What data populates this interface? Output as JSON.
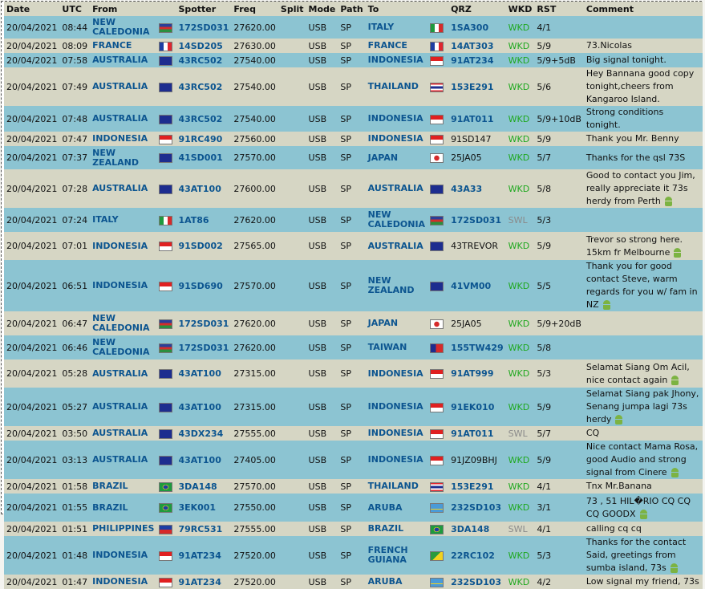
{
  "columns": [
    "Date",
    "UTC",
    "From",
    "",
    "Spotter",
    "Freq",
    "Split",
    "Mode",
    "Path",
    "To",
    "",
    "QRZ",
    "WKD",
    "RST",
    "Comment"
  ],
  "rows": [
    {
      "date": "20/04/2021",
      "utc": "08:44",
      "from": "NEW CALEDONIA",
      "from_flag": "new-caledonia-flag",
      "spotter": "172SD031",
      "freq": "27620.00",
      "split": "",
      "mode": "USB",
      "path": "SP",
      "to": "ITALY",
      "to_flag": "italy-flag",
      "qrz": "1SA300",
      "qrz_link": true,
      "wkd": "WKD",
      "rst": "4/1",
      "comment": "",
      "android": false,
      "h": 28
    },
    {
      "date": "20/04/2021",
      "utc": "08:09",
      "from": "FRANCE",
      "from_flag": "france-flag",
      "spotter": "14SD205",
      "freq": "27630.00",
      "split": "",
      "mode": "USB",
      "path": "SP",
      "to": "FRANCE",
      "to_flag": "france-flag",
      "qrz": "14AT303",
      "qrz_link": true,
      "wkd": "WKD",
      "rst": "5/9",
      "comment": "73.Nicolas",
      "android": false,
      "h": 18
    },
    {
      "date": "20/04/2021",
      "utc": "07:58",
      "from": "AUSTRALIA",
      "from_flag": "australia-flag",
      "spotter": "43RC502",
      "freq": "27540.00",
      "split": "",
      "mode": "USB",
      "path": "SP",
      "to": "INDONESIA",
      "to_flag": "indonesia-flag",
      "qrz": "91AT234",
      "qrz_link": true,
      "wkd": "WKD",
      "rst": "5/9+5dB",
      "comment": "Big signal tonight.",
      "android": false,
      "h": 18
    },
    {
      "date": "20/04/2021",
      "utc": "07:49",
      "from": "AUSTRALIA",
      "from_flag": "australia-flag",
      "spotter": "43RC502",
      "freq": "27540.00",
      "split": "",
      "mode": "USB",
      "path": "SP",
      "to": "THAILAND",
      "to_flag": "thailand-flag",
      "qrz": "153E291",
      "qrz_link": true,
      "wkd": "WKD",
      "rst": "5/6",
      "comment": "Hey Bannana good copy tonight,cheers from Kangaroo Island.",
      "android": false,
      "h": 30
    },
    {
      "date": "20/04/2021",
      "utc": "07:48",
      "from": "AUSTRALIA",
      "from_flag": "australia-flag",
      "spotter": "43RC502",
      "freq": "27540.00",
      "split": "",
      "mode": "USB",
      "path": "SP",
      "to": "INDONESIA",
      "to_flag": "indonesia-flag",
      "qrz": "91AT011",
      "qrz_link": true,
      "wkd": "WKD",
      "rst": "5/9+10dB",
      "comment": "Strong conditions tonight.",
      "android": false,
      "h": 18
    },
    {
      "date": "20/04/2021",
      "utc": "07:47",
      "from": "INDONESIA",
      "from_flag": "indonesia-flag",
      "spotter": "91RC490",
      "freq": "27560.00",
      "split": "",
      "mode": "USB",
      "path": "SP",
      "to": "INDONESIA",
      "to_flag": "indonesia-flag",
      "qrz": "91SD147",
      "qrz_link": false,
      "wkd": "WKD",
      "rst": "5/9",
      "comment": "Thank you Mr. Benny",
      "android": false,
      "h": 18
    },
    {
      "date": "20/04/2021",
      "utc": "07:37",
      "from": "NEW ZEALAND",
      "from_flag": "new-zealand-flag",
      "spotter": "41SD001",
      "freq": "27570.00",
      "split": "",
      "mode": "USB",
      "path": "SP",
      "to": "JAPAN",
      "to_flag": "japan-flag",
      "qrz": "25JA05",
      "qrz_link": false,
      "wkd": "WKD",
      "rst": "5/7",
      "comment": "Thanks for the qsl 73S",
      "android": false,
      "h": 29
    },
    {
      "date": "20/04/2021",
      "utc": "07:28",
      "from": "AUSTRALIA",
      "from_flag": "australia-flag",
      "spotter": "43AT100",
      "freq": "27600.00",
      "split": "",
      "mode": "USB",
      "path": "SP",
      "to": "AUSTRALIA",
      "to_flag": "australia-flag",
      "qrz": "43A33",
      "qrz_link": true,
      "wkd": "WKD",
      "rst": "5/8",
      "comment": "Good to contact you Jim, really appreciate it 73s herdy from Perth",
      "android": true,
      "h": 35
    },
    {
      "date": "20/04/2021",
      "utc": "07:24",
      "from": "ITALY",
      "from_flag": "italy-flag",
      "spotter": "1AT86",
      "freq": "27620.00",
      "split": "",
      "mode": "USB",
      "path": "SP",
      "to": "NEW CALEDONIA",
      "to_flag": "new-caledonia-flag",
      "qrz": "172SD031",
      "qrz_link": true,
      "wkd": "SWL",
      "rst": "5/3",
      "comment": "",
      "android": false,
      "h": 30
    },
    {
      "date": "20/04/2021",
      "utc": "07:01",
      "from": "INDONESIA",
      "from_flag": "indonesia-flag",
      "spotter": "91SD002",
      "freq": "27565.00",
      "split": "",
      "mode": "USB",
      "path": "SP",
      "to": "AUSTRALIA",
      "to_flag": "australia-flag",
      "qrz": "43TREVOR",
      "qrz_link": false,
      "wkd": "WKD",
      "rst": "5/9",
      "comment": "Trevor so strong here. 15km fr Melbourne",
      "android": true,
      "h": 35
    },
    {
      "date": "20/04/2021",
      "utc": "06:51",
      "from": "INDONESIA",
      "from_flag": "indonesia-flag",
      "spotter": "91SD690",
      "freq": "27570.00",
      "split": "",
      "mode": "USB",
      "path": "SP",
      "to": "NEW ZEALAND",
      "to_flag": "new-zealand-flag",
      "qrz": "41VM00",
      "qrz_link": true,
      "wkd": "WKD",
      "rst": "5/5",
      "comment": "Thank you for good contact Steve, warm regards for you w/ fam in NZ",
      "android": true,
      "h": 35
    },
    {
      "date": "20/04/2021",
      "utc": "06:47",
      "from": "NEW CALEDONIA",
      "from_flag": "new-caledonia-flag",
      "spotter": "172SD031",
      "freq": "27620.00",
      "split": "",
      "mode": "USB",
      "path": "SP",
      "to": "JAPAN",
      "to_flag": "japan-flag",
      "qrz": "25JA05",
      "qrz_link": false,
      "wkd": "WKD",
      "rst": "5/9+20dB",
      "comment": "",
      "android": false,
      "h": 30
    },
    {
      "date": "20/04/2021",
      "utc": "06:46",
      "from": "NEW CALEDONIA",
      "from_flag": "new-caledonia-flag",
      "spotter": "172SD031",
      "freq": "27620.00",
      "split": "",
      "mode": "USB",
      "path": "SP",
      "to": "TAIWAN",
      "to_flag": "taiwan-flag",
      "qrz": "155TW429",
      "qrz_link": true,
      "wkd": "WKD",
      "rst": "5/8",
      "comment": "",
      "android": false,
      "h": 30
    },
    {
      "date": "20/04/2021",
      "utc": "05:28",
      "from": "AUSTRALIA",
      "from_flag": "australia-flag",
      "spotter": "43AT100",
      "freq": "27315.00",
      "split": "",
      "mode": "USB",
      "path": "SP",
      "to": "INDONESIA",
      "to_flag": "indonesia-flag",
      "qrz": "91AT999",
      "qrz_link": true,
      "wkd": "WKD",
      "rst": "5/3",
      "comment": "Selamat Siang Om Acil, nice contact again",
      "android": true,
      "h": 35
    },
    {
      "date": "20/04/2021",
      "utc": "05:27",
      "from": "AUSTRALIA",
      "from_flag": "australia-flag",
      "spotter": "43AT100",
      "freq": "27315.00",
      "split": "",
      "mode": "USB",
      "path": "SP",
      "to": "INDONESIA",
      "to_flag": "indonesia-flag",
      "qrz": "91EK010",
      "qrz_link": true,
      "wkd": "WKD",
      "rst": "5/9",
      "comment": "Selamat Siang pak Jhony, Senang jumpa lagi 73s herdy",
      "android": true,
      "h": 35
    },
    {
      "date": "20/04/2021",
      "utc": "03:50",
      "from": "AUSTRALIA",
      "from_flag": "australia-flag",
      "spotter": "43DX234",
      "freq": "27555.00",
      "split": "",
      "mode": "USB",
      "path": "SP",
      "to": "INDONESIA",
      "to_flag": "indonesia-flag",
      "qrz": "91AT011",
      "qrz_link": true,
      "wkd": "SWL",
      "rst": "5/7",
      "comment": "CQ",
      "android": false,
      "h": 18
    },
    {
      "date": "20/04/2021",
      "utc": "03:13",
      "from": "AUSTRALIA",
      "from_flag": "australia-flag",
      "spotter": "43AT100",
      "freq": "27405.00",
      "split": "",
      "mode": "USB",
      "path": "SP",
      "to": "INDONESIA",
      "to_flag": "indonesia-flag",
      "qrz": "91JZ09BHJ",
      "qrz_link": false,
      "wkd": "WKD",
      "rst": "5/9",
      "comment": "Nice contact Mama Rosa, good Audio and strong signal from Cinere",
      "android": true,
      "h": 35
    },
    {
      "date": "20/04/2021",
      "utc": "01:58",
      "from": "BRAZIL",
      "from_flag": "brazil-flag",
      "spotter": "3DA148",
      "freq": "27570.00",
      "split": "",
      "mode": "USB",
      "path": "SP",
      "to": "THAILAND",
      "to_flag": "thailand-flag",
      "qrz": "153E291",
      "qrz_link": true,
      "wkd": "WKD",
      "rst": "4/1",
      "comment": "Tnx Mr.Banana",
      "android": false,
      "h": 18
    },
    {
      "date": "20/04/2021",
      "utc": "01:55",
      "from": "BRAZIL",
      "from_flag": "brazil-flag",
      "spotter": "3EK001",
      "freq": "27550.00",
      "split": "",
      "mode": "USB",
      "path": "SP",
      "to": "ARUBA",
      "to_flag": "aruba-flag",
      "qrz": "232SD103",
      "qrz_link": true,
      "wkd": "WKD",
      "rst": "3/1",
      "comment": "73 , 51 HIL�RIO CQ CQ CQ GOODX",
      "android": true,
      "h": 35
    },
    {
      "date": "20/04/2021",
      "utc": "01:51",
      "from": "PHILIPPINES",
      "from_flag": "philippines-flag",
      "spotter": "79RC531",
      "freq": "27555.00",
      "split": "",
      "mode": "USB",
      "path": "SP",
      "to": "BRAZIL",
      "to_flag": "brazil-flag",
      "qrz": "3DA148",
      "qrz_link": true,
      "wkd": "SWL",
      "rst": "4/1",
      "comment": "calling cq cq",
      "android": false,
      "h": 18
    },
    {
      "date": "20/04/2021",
      "utc": "01:48",
      "from": "INDONESIA",
      "from_flag": "indonesia-flag",
      "spotter": "91AT234",
      "freq": "27520.00",
      "split": "",
      "mode": "USB",
      "path": "SP",
      "to": "FRENCH GUIANA",
      "to_flag": "french-guiana-flag",
      "qrz": "22RC102",
      "qrz_link": true,
      "wkd": "WKD",
      "rst": "5/3",
      "comment": "Thanks for the contact Said, greetings from sumba island, 73s",
      "android": true,
      "h": 35
    },
    {
      "date": "20/04/2021",
      "utc": "01:47",
      "from": "INDONESIA",
      "from_flag": "indonesia-flag",
      "spotter": "91AT234",
      "freq": "27520.00",
      "split": "",
      "mode": "USB",
      "path": "SP",
      "to": "ARUBA",
      "to_flag": "aruba-flag",
      "qrz": "232SD103",
      "qrz_link": true,
      "wkd": "WKD",
      "rst": "4/2",
      "comment": "Low signal my friend, 73s",
      "android": false,
      "h": 18
    }
  ]
}
